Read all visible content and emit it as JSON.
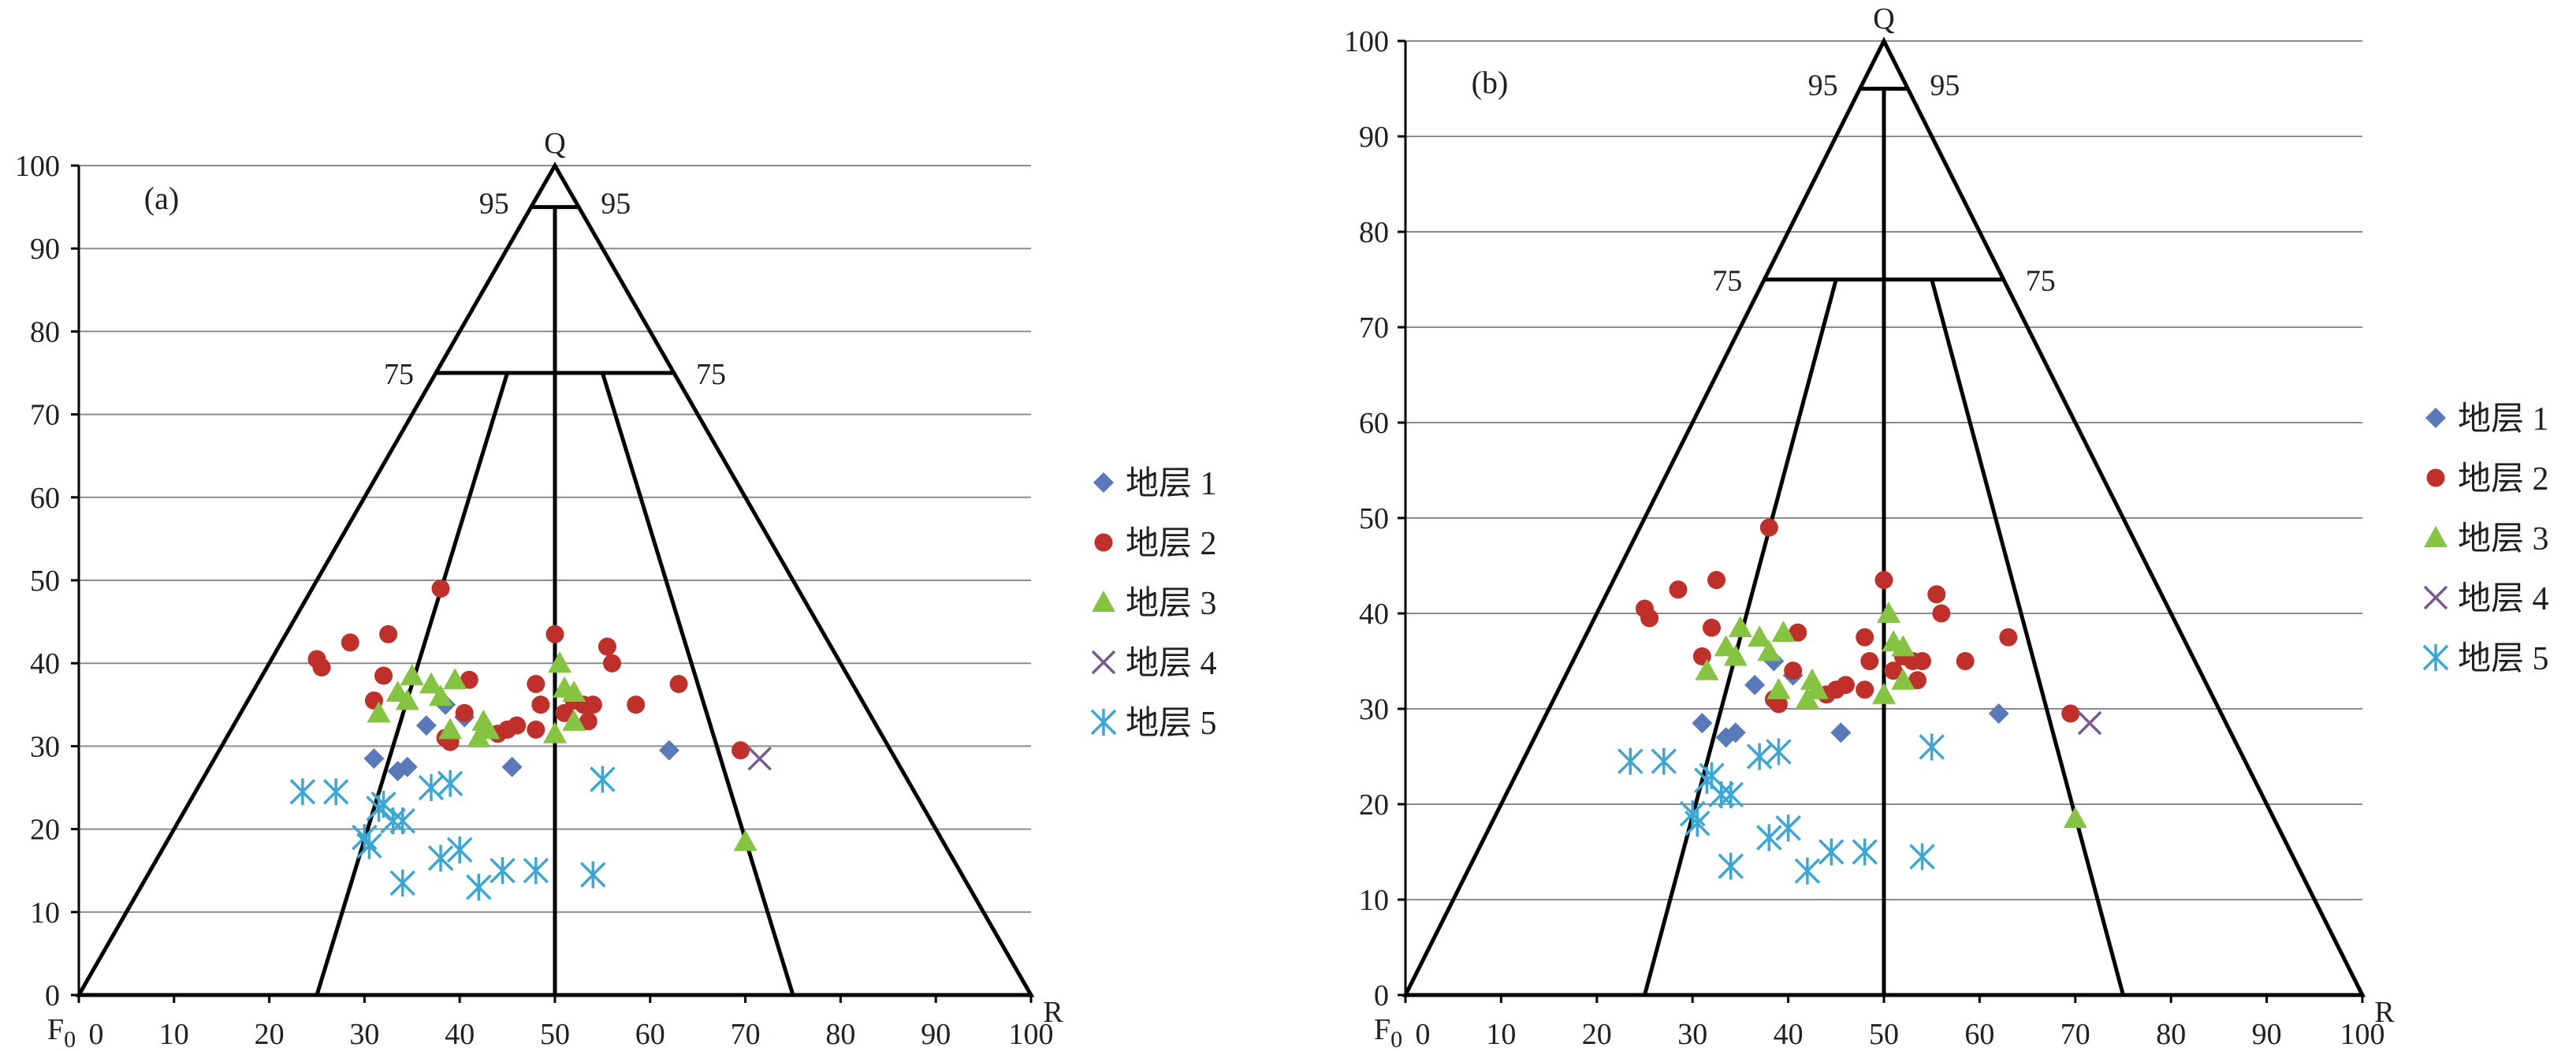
{
  "figure": {
    "legend_prefix": "地层",
    "vertex_labels": {
      "top": "Q",
      "left": "F",
      "left_sub": "0",
      "right": "R"
    },
    "colors": {
      "stratum_1": "#5a79b8",
      "stratum_2": "#c0302a",
      "stratum_3": "#84c441",
      "stratum_4": "#7a5a8c",
      "stratum_5": "#3aa7d6"
    }
  },
  "chart_data": [
    {
      "type": "scatter",
      "panel_label": "(a)",
      "xlim": [
        0,
        100
      ],
      "ylim": [
        0,
        100
      ],
      "x_ticks": [
        "0",
        "10",
        "20",
        "30",
        "40",
        "50",
        "60",
        "70",
        "80",
        "90",
        "100"
      ],
      "y_ticks": [
        "0",
        "10",
        "20",
        "30",
        "40",
        "50",
        "60",
        "70",
        "80",
        "90",
        "100"
      ],
      "grid": "horizontal",
      "legend_position": "right",
      "boundaries": {
        "upper": 95,
        "middle": 75
      },
      "boundary_labels": {
        "upper_left": "95",
        "upper_right": "95",
        "middle_left": "75",
        "middle_right": "75"
      },
      "series": [
        {
          "name": "地层 1",
          "marker": "diamond",
          "points": [
            [
              31,
              28.5
            ],
            [
              33.5,
              27
            ],
            [
              34.5,
              27.5
            ],
            [
              36.5,
              32.5
            ],
            [
              38.5,
              35
            ],
            [
              40.5,
              33.5
            ],
            [
              45.5,
              27.5
            ],
            [
              62,
              29.5
            ]
          ]
        },
        {
          "name": "地层 2",
          "marker": "circle",
          "points": [
            [
              25,
              40.5
            ],
            [
              25.5,
              39.5
            ],
            [
              28.5,
              42.5
            ],
            [
              31,
              35.5
            ],
            [
              32,
              38.5
            ],
            [
              32.5,
              43.5
            ],
            [
              38,
              49
            ],
            [
              38.5,
              31
            ],
            [
              39,
              30.5
            ],
            [
              40.5,
              34
            ],
            [
              41,
              38
            ],
            [
              44,
              31.5
            ],
            [
              45,
              32
            ],
            [
              46,
              32.5
            ],
            [
              48,
              32
            ],
            [
              48,
              37.5
            ],
            [
              48.5,
              35
            ],
            [
              50,
              43.5
            ],
            [
              51,
              34
            ],
            [
              52,
              35.5
            ],
            [
              53,
              35
            ],
            [
              53.5,
              33
            ],
            [
              54,
              35
            ],
            [
              55.5,
              42
            ],
            [
              56,
              40
            ],
            [
              58.5,
              35
            ],
            [
              63,
              37.5
            ],
            [
              69.5,
              29.5
            ]
          ]
        },
        {
          "name": "地层 3",
          "marker": "triangle",
          "points": [
            [
              31.5,
              34
            ],
            [
              33.5,
              36.5
            ],
            [
              34.5,
              35.5
            ],
            [
              35,
              38.5
            ],
            [
              37,
              37.5
            ],
            [
              38,
              36
            ],
            [
              39.5,
              38
            ],
            [
              39,
              32
            ],
            [
              42,
              31
            ],
            [
              42.5,
              33
            ],
            [
              43,
              32
            ],
            [
              50,
              31.5
            ],
            [
              50.5,
              40
            ],
            [
              51,
              37
            ],
            [
              52,
              36.5
            ],
            [
              52,
              33
            ],
            [
              70,
              18.5
            ]
          ]
        },
        {
          "name": "地层 4",
          "marker": "x",
          "points": [
            [
              71.5,
              28.5
            ]
          ]
        },
        {
          "name": "地层 5",
          "marker": "asterisk",
          "points": [
            [
              23.5,
              24.5
            ],
            [
              27,
              24.5
            ],
            [
              30,
              19
            ],
            [
              30.5,
              18
            ],
            [
              31.5,
              22.5
            ],
            [
              32,
              23
            ],
            [
              33,
              21
            ],
            [
              34,
              21
            ],
            [
              34,
              13.5
            ],
            [
              37,
              25
            ],
            [
              38,
              16.5
            ],
            [
              39,
              25.5
            ],
            [
              40,
              17.5
            ],
            [
              42,
              13
            ],
            [
              44.5,
              15
            ],
            [
              48,
              15
            ],
            [
              54,
              14.5
            ],
            [
              55,
              26
            ]
          ]
        }
      ]
    },
    {
      "type": "scatter",
      "panel_label": "(b)",
      "xlim": [
        0,
        100
      ],
      "ylim": [
        0,
        100
      ],
      "x_ticks": [
        "0",
        "10",
        "20",
        "30",
        "40",
        "50",
        "60",
        "70",
        "80",
        "90",
        "100"
      ],
      "y_ticks": [
        "0",
        "10",
        "20",
        "30",
        "40",
        "50",
        "60",
        "70",
        "80",
        "90",
        "100"
      ],
      "grid": "horizontal",
      "legend_position": "right",
      "boundaries": {
        "upper": 95,
        "middle": 75
      },
      "boundary_labels": {
        "upper_left": "95",
        "upper_right": "95",
        "middle_left": "75",
        "middle_right": "75"
      },
      "series": [
        {
          "name": "地层 1",
          "marker": "diamond",
          "points": [
            [
              31,
              28.5
            ],
            [
              33.5,
              27
            ],
            [
              34.5,
              27.5
            ],
            [
              36.5,
              32.5
            ],
            [
              38.5,
              35
            ],
            [
              40.5,
              33.5
            ],
            [
              45.5,
              27.5
            ],
            [
              62,
              29.5
            ]
          ]
        },
        {
          "name": "地层 2",
          "marker": "circle",
          "points": [
            [
              25,
              40.5
            ],
            [
              25.5,
              39.5
            ],
            [
              28.5,
              42.5
            ],
            [
              31,
              35.5
            ],
            [
              32,
              38.5
            ],
            [
              32.5,
              43.5
            ],
            [
              38,
              49
            ],
            [
              38.5,
              31
            ],
            [
              39,
              30.5
            ],
            [
              40.5,
              34
            ],
            [
              41,
              38
            ],
            [
              44,
              31.5
            ],
            [
              45,
              32
            ],
            [
              46,
              32.5
            ],
            [
              48,
              32
            ],
            [
              48,
              37.5
            ],
            [
              48.5,
              35
            ],
            [
              50,
              43.5
            ],
            [
              51,
              34
            ],
            [
              52,
              35.5
            ],
            [
              53,
              35
            ],
            [
              53.5,
              33
            ],
            [
              54,
              35
            ],
            [
              55.5,
              42
            ],
            [
              56,
              40
            ],
            [
              58.5,
              35
            ],
            [
              63,
              37.5
            ],
            [
              69.5,
              29.5
            ]
          ]
        },
        {
          "name": "地层 3",
          "marker": "triangle",
          "points": [
            [
              31.5,
              34
            ],
            [
              33.5,
              36.5
            ],
            [
              34.5,
              35.5
            ],
            [
              35,
              38.5
            ],
            [
              37,
              37.5
            ],
            [
              38,
              36
            ],
            [
              39.5,
              38
            ],
            [
              39,
              32
            ],
            [
              42,
              31
            ],
            [
              42.5,
              33
            ],
            [
              43,
              32
            ],
            [
              50,
              31.5
            ],
            [
              50.5,
              40
            ],
            [
              51,
              37
            ],
            [
              52,
              36.5
            ],
            [
              52,
              33
            ],
            [
              70,
              18.5
            ]
          ]
        },
        {
          "name": "地层 4",
          "marker": "x",
          "points": [
            [
              71.5,
              28.5
            ]
          ]
        },
        {
          "name": "地层 5",
          "marker": "asterisk",
          "points": [
            [
              23.5,
              24.5
            ],
            [
              27,
              24.5
            ],
            [
              30,
              19
            ],
            [
              30.5,
              18
            ],
            [
              31.5,
              22.5
            ],
            [
              32,
              23
            ],
            [
              33,
              21
            ],
            [
              34,
              21
            ],
            [
              34,
              13.5
            ],
            [
              37,
              25
            ],
            [
              38,
              16.5
            ],
            [
              39,
              25.5
            ],
            [
              40,
              17.5
            ],
            [
              42,
              13
            ],
            [
              44.5,
              15
            ],
            [
              48,
              15
            ],
            [
              54,
              14.5
            ],
            [
              55,
              26
            ]
          ]
        }
      ]
    }
  ]
}
